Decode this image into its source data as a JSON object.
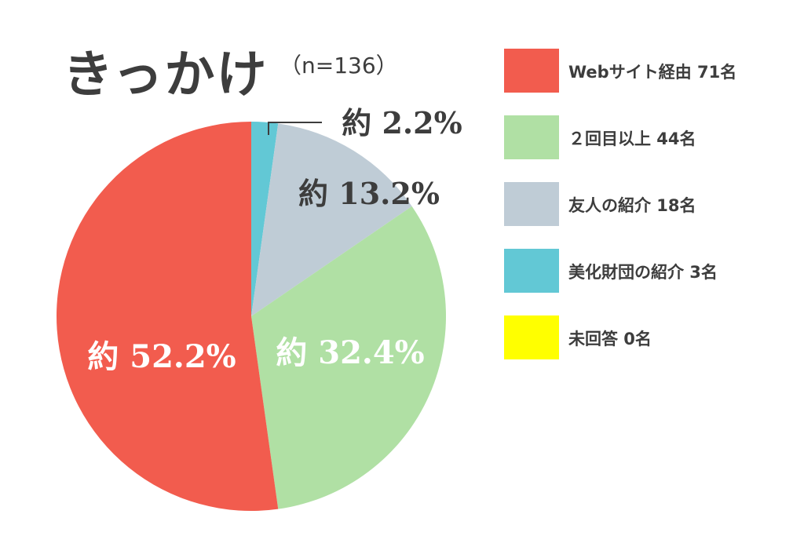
{
  "title": "きっかけ",
  "subtitle": "（n=136）",
  "chart_data": {
    "type": "pie",
    "title": "きっかけ",
    "subtitle": "（n=136）",
    "total": 136,
    "slices": [
      {
        "label": "Webサイト経由 71名",
        "value": 71,
        "percent_label": "約 52.2%",
        "color": "#f25c4e",
        "label_color": "#ffffff"
      },
      {
        "label": "２回目以上 44名",
        "value": 44,
        "percent_label": "約 32.4%",
        "color": "#b0e0a4",
        "label_color": "#ffffff"
      },
      {
        "label": "友人の紹介 18名",
        "value": 18,
        "percent_label": "約 13.2%",
        "color": "#bfccd6",
        "label_color": "#3d3d3d"
      },
      {
        "label": "美化財団の紹介 3名",
        "value": 3,
        "percent_label": "約 2.2%",
        "color": "#62c8d5",
        "label_color": "#3d3d3d"
      },
      {
        "label": "未回答 0名",
        "value": 0,
        "percent_label": "",
        "color": "#ffff00",
        "label_color": "#3d3d3d"
      }
    ],
    "legend_position": "right"
  }
}
